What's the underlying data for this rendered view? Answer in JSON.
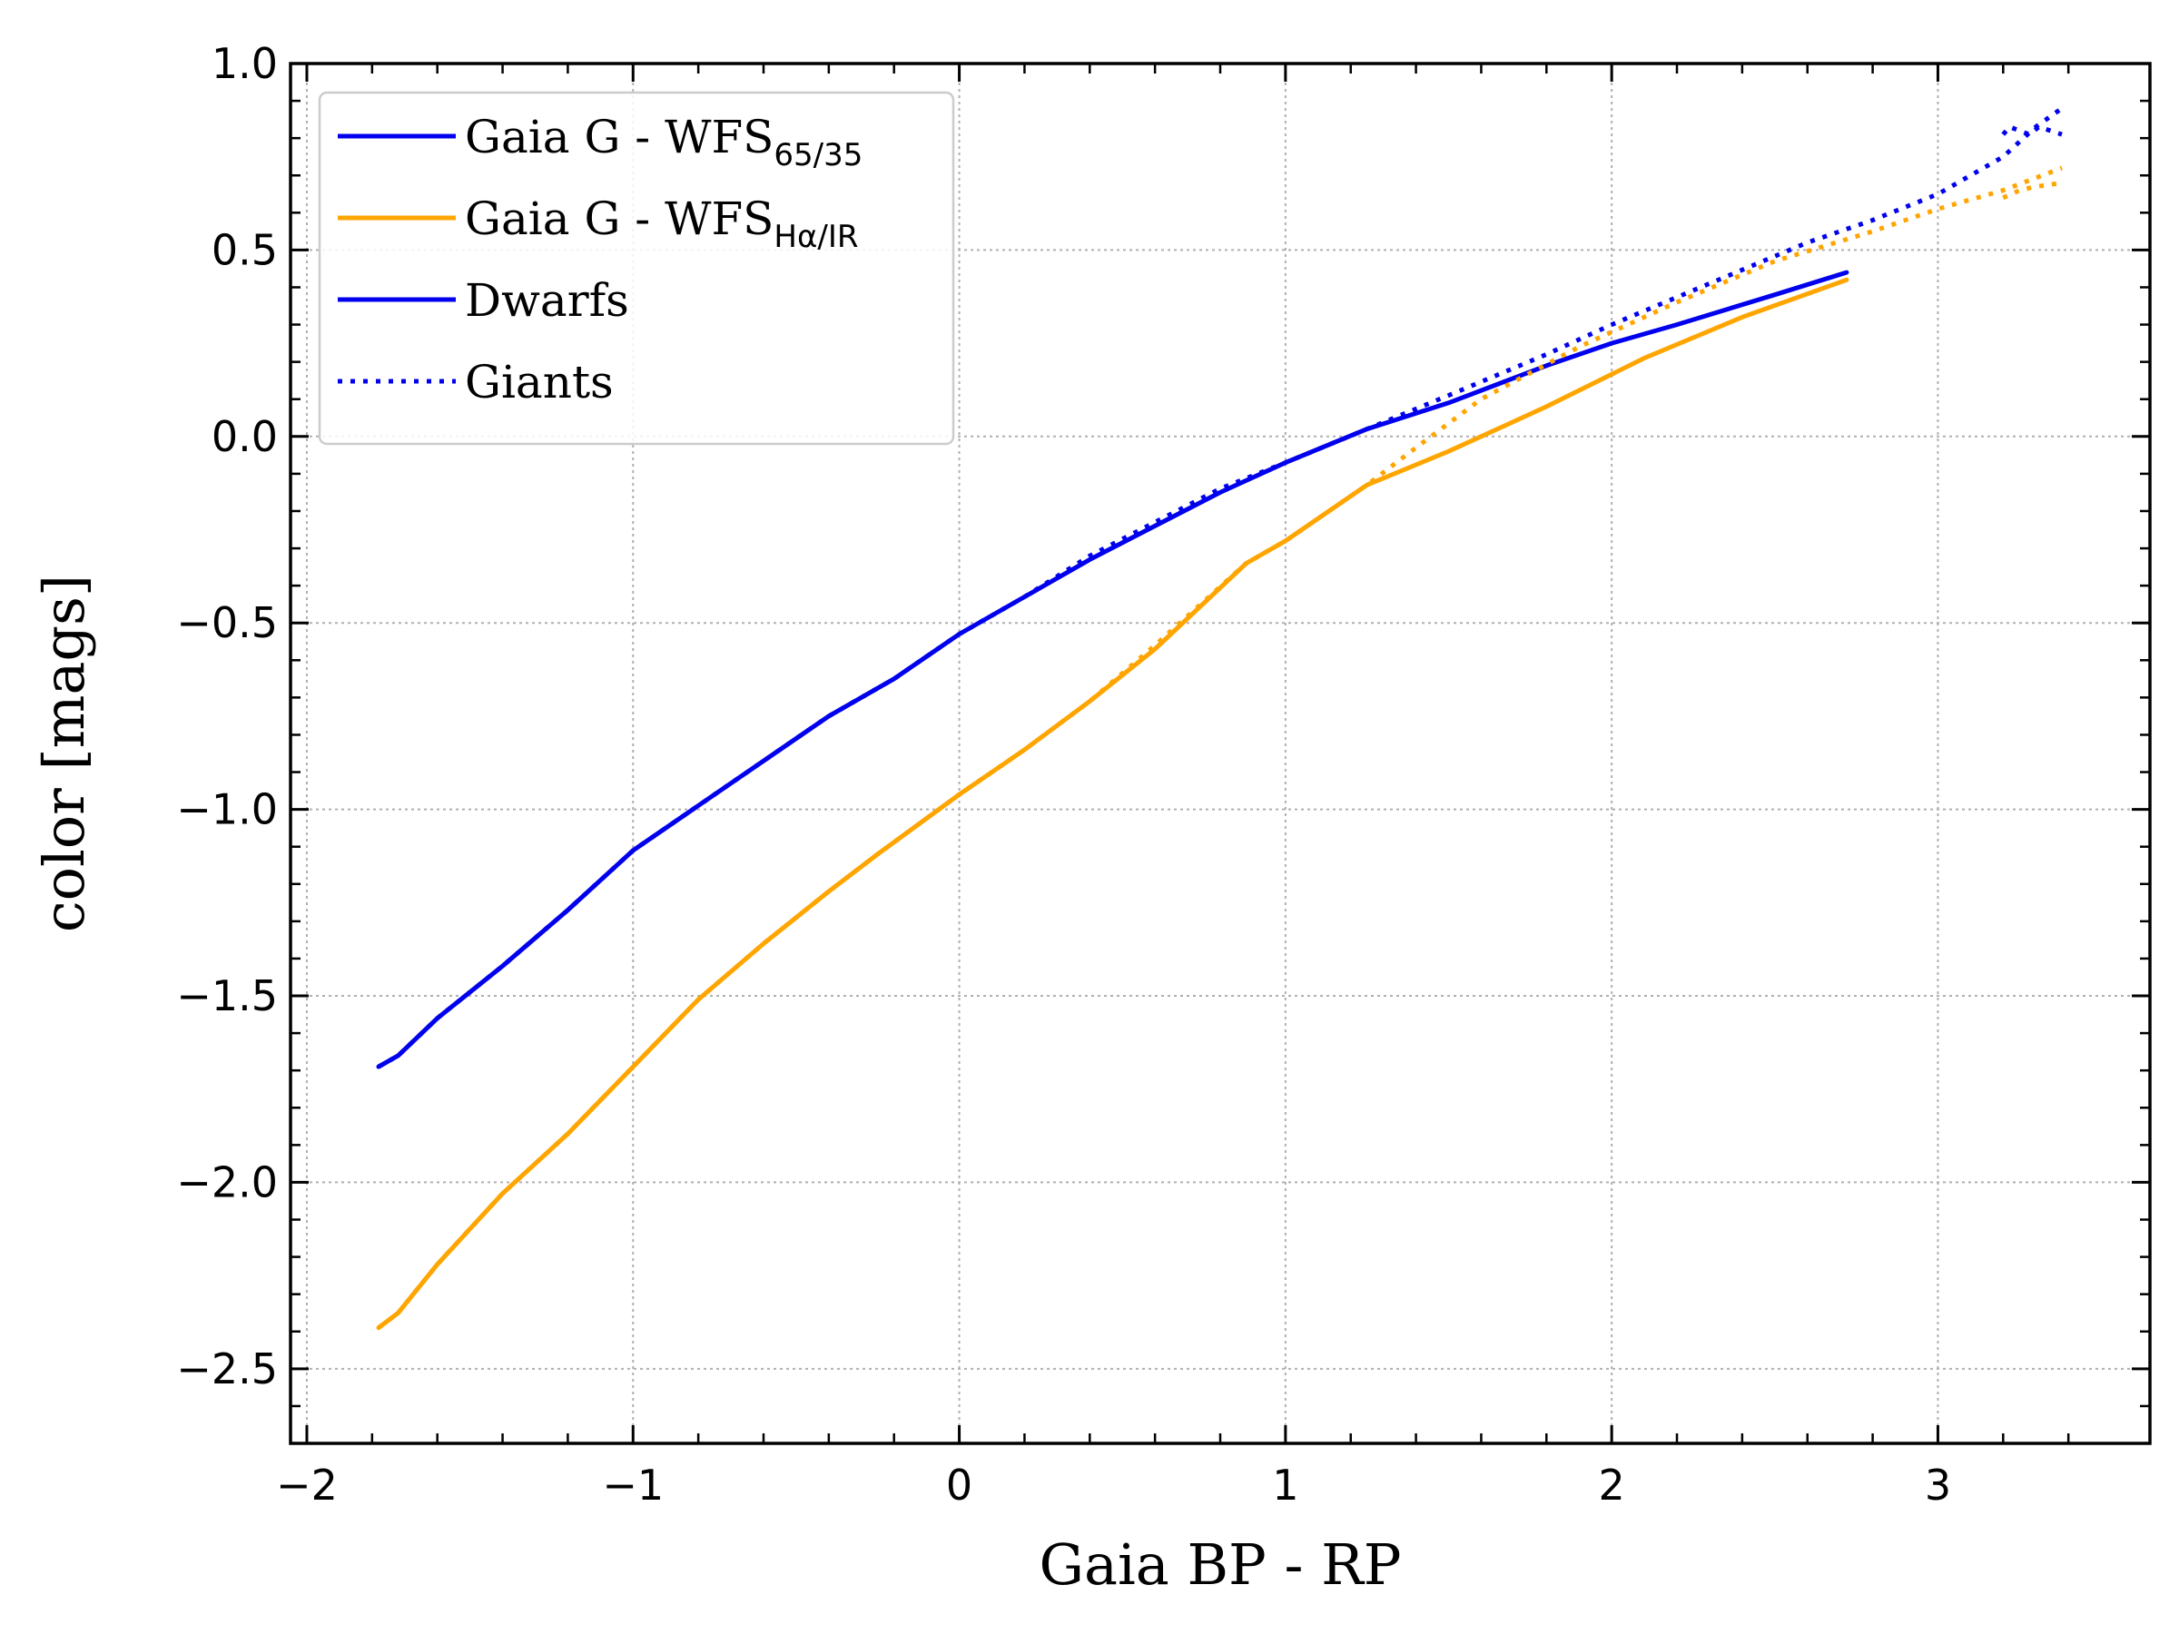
{
  "chart_data": {
    "type": "line",
    "xlabel": "Gaia BP - RP",
    "ylabel": "color [mags]",
    "xlim": [
      -2.05,
      3.65
    ],
    "ylim": [
      -2.7,
      1.0
    ],
    "grid": true,
    "legend_position": "top-left",
    "xticks": [
      {
        "value": -2,
        "label": "−2"
      },
      {
        "value": -1,
        "label": "−1"
      },
      {
        "value": 0,
        "label": "0"
      },
      {
        "value": 1,
        "label": "1"
      },
      {
        "value": 2,
        "label": "2"
      },
      {
        "value": 3,
        "label": "3"
      }
    ],
    "yticks": [
      {
        "value": 1.0,
        "label": "1.0"
      },
      {
        "value": 0.5,
        "label": "0.5"
      },
      {
        "value": 0.0,
        "label": "0.0"
      },
      {
        "value": -0.5,
        "label": "−0.5"
      },
      {
        "value": -1.0,
        "label": "−1.0"
      },
      {
        "value": -1.5,
        "label": "−1.5"
      },
      {
        "value": -2.0,
        "label": "−2.0"
      },
      {
        "value": -2.5,
        "label": "−2.5"
      }
    ],
    "legend": [
      {
        "key": "wfs6535",
        "text": "Gaia G - WFS",
        "sub": "65/35",
        "color": "#0000ee",
        "style": "solid"
      },
      {
        "key": "wfsha",
        "text": "Gaia G - WFS",
        "sub": "Hα/IR",
        "color": "#ffa500",
        "style": "solid"
      },
      {
        "key": "dwarfs",
        "text": "Dwarfs",
        "sub": "",
        "color": "#0000ee",
        "style": "solid"
      },
      {
        "key": "giants",
        "text": "Giants",
        "sub": "",
        "color": "#0000ee",
        "style": "dotted"
      }
    ],
    "series": [
      {
        "band": "65/35",
        "population": "Dwarfs",
        "color": "#0000ee",
        "style": "solid",
        "x": [
          -1.78,
          -1.72,
          -1.6,
          -1.4,
          -1.2,
          -1.0,
          -0.8,
          -0.6,
          -0.4,
          -0.2,
          0.0,
          0.2,
          0.4,
          0.6,
          0.8,
          1.0,
          1.25,
          1.5,
          1.8,
          2.0,
          2.2,
          2.5,
          2.72
        ],
        "y": [
          -1.69,
          -1.66,
          -1.56,
          -1.42,
          -1.27,
          -1.11,
          -0.99,
          -0.87,
          -0.75,
          -0.65,
          -0.53,
          -0.43,
          -0.33,
          -0.24,
          -0.15,
          -0.07,
          0.02,
          0.09,
          0.19,
          0.25,
          0.3,
          0.38,
          0.44
        ]
      },
      {
        "band": "65/35",
        "population": "Giants",
        "color": "#0000ee",
        "style": "dotted",
        "x": [
          -1.78,
          -1.72,
          -1.6,
          -1.4,
          -1.2,
          -1.0,
          -0.8,
          -0.6,
          -0.4,
          -0.2,
          0.0,
          0.2,
          0.4,
          0.6,
          0.8,
          1.0,
          1.25,
          1.5,
          1.8,
          2.0,
          2.3,
          2.6,
          2.8,
          3.0,
          3.2,
          3.3,
          3.38
        ],
        "y": [
          -1.69,
          -1.66,
          -1.56,
          -1.42,
          -1.27,
          -1.11,
          -0.99,
          -0.87,
          -0.75,
          -0.65,
          -0.53,
          -0.43,
          -0.32,
          -0.23,
          -0.14,
          -0.07,
          0.02,
          0.11,
          0.22,
          0.3,
          0.41,
          0.52,
          0.58,
          0.65,
          0.75,
          0.83,
          0.88
        ]
      },
      {
        "band": "65/35",
        "population": "Giants",
        "color": "#0000ee",
        "style": "dotted",
        "x": [
          3.2,
          3.22,
          3.28,
          3.31,
          3.38
        ],
        "y": [
          0.81,
          0.83,
          0.81,
          0.83,
          0.81
        ]
      },
      {
        "band": "Hα/IR",
        "population": "Dwarfs",
        "color": "#ffa500",
        "style": "solid",
        "x": [
          -1.78,
          -1.72,
          -1.6,
          -1.4,
          -1.2,
          -1.0,
          -0.8,
          -0.6,
          -0.4,
          -0.25,
          0.0,
          0.2,
          0.4,
          0.6,
          0.88,
          1.0,
          1.25,
          1.5,
          1.8,
          2.1,
          2.4,
          2.72
        ],
        "y": [
          -2.39,
          -2.35,
          -2.22,
          -2.03,
          -1.87,
          -1.69,
          -1.51,
          -1.36,
          -1.22,
          -1.12,
          -0.96,
          -0.84,
          -0.71,
          -0.57,
          -0.34,
          -0.28,
          -0.13,
          -0.04,
          0.08,
          0.21,
          0.32,
          0.42
        ]
      },
      {
        "band": "Hα/IR",
        "population": "Giants",
        "color": "#ffa500",
        "style": "dotted",
        "x": [
          -1.78,
          -1.72,
          -1.6,
          -1.4,
          -1.2,
          -1.0,
          -0.8,
          -0.6,
          -0.4,
          -0.25,
          0.0,
          0.2,
          0.4,
          0.6,
          0.88,
          1.0,
          1.25,
          1.4,
          1.6,
          1.9,
          2.2,
          2.5,
          2.8,
          3.0,
          3.2,
          3.38
        ],
        "y": [
          -2.39,
          -2.35,
          -2.22,
          -2.03,
          -1.87,
          -1.69,
          -1.51,
          -1.36,
          -1.22,
          -1.12,
          -0.96,
          -0.84,
          -0.71,
          -0.56,
          -0.34,
          -0.28,
          -0.13,
          -0.03,
          0.1,
          0.24,
          0.36,
          0.47,
          0.55,
          0.61,
          0.66,
          0.72
        ]
      },
      {
        "band": "Hα/IR",
        "population": "Giants",
        "color": "#ffa500",
        "style": "dotted",
        "x": [
          3.2,
          3.25,
          3.3,
          3.38
        ],
        "y": [
          0.64,
          0.66,
          0.67,
          0.68
        ]
      }
    ]
  }
}
